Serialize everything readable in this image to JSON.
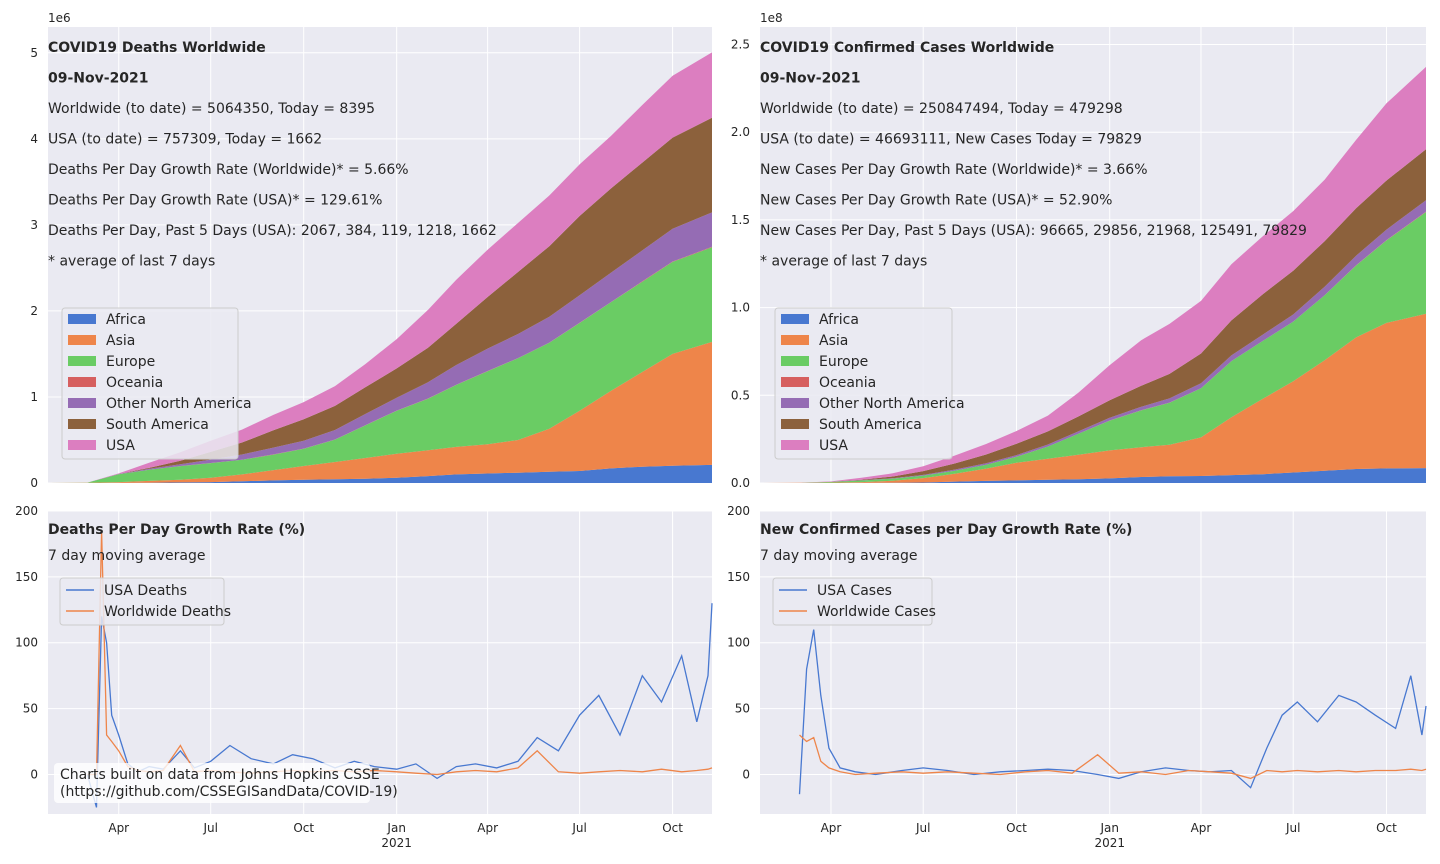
{
  "colors": {
    "Africa": "#4878d0",
    "Asia": "#ee854a",
    "Europe": "#6acc64",
    "Oceania": "#d65f5f",
    "Other North America": "#956cb4",
    "South America": "#8c613c",
    "USA": "#dc7ec0",
    "usa_line": "#4878d0",
    "world_line": "#ee854a",
    "panel_bg": "#eaeaf2",
    "grid": "#ffffff"
  },
  "x_ticks": [
    {
      "label": "Apr",
      "t": 0.0
    },
    {
      "label": "Jul",
      "t": 0.0
    },
    {
      "label": "Oct",
      "t": 0.0
    },
    {
      "label": "Jan",
      "t": 0.0
    },
    {
      "label": "Apr",
      "t": 0.0
    },
    {
      "label": "Jul",
      "t": 0.0
    },
    {
      "label": "Oct",
      "t": 0.0
    }
  ],
  "x_year_label": "2021",
  "footnote": [
    "Charts built on data from Johns Hopkins CSSE",
    "(https://github.com/CSSEGISandData/COVID-19)"
  ],
  "chart_data": [
    {
      "id": "deaths_cumulative",
      "type": "area",
      "y_multiplier_label": "1e6",
      "ylim": [
        0,
        5.3
      ],
      "y_ticks": [
        "0",
        "1",
        "2",
        "3",
        "4",
        "5"
      ],
      "y_tick_values": [
        0,
        1,
        2,
        3,
        4,
        5
      ],
      "annotations": [
        {
          "text": "COVID19 Deaths Worldwide",
          "bold": true
        },
        {
          "text": "09-Nov-2021",
          "bold": true
        },
        {
          "text": "Worldwide (to date) = 5064350, Today = 8395",
          "bold": false
        },
        {
          "text": "USA (to date) = 757309, Today = 1662",
          "bold": false
        },
        {
          "text": "Deaths Per Day Growth Rate (Worldwide)* = 5.66%",
          "bold": false
        },
        {
          "text": "Deaths Per Day Growth Rate (USA)* = 129.61%",
          "bold": false
        },
        {
          "text": "Deaths Per Day, Past 5 Days (USA): 2067, 384, 119, 1218, 1662",
          "bold": false
        },
        {
          "text": "* average of last 7 days",
          "bold": false
        }
      ],
      "legend": [
        "Africa",
        "Asia",
        "Europe",
        "Oceania",
        "Other North America",
        "South America",
        "USA"
      ],
      "x": [
        "2020-01-22",
        "2020-03-01",
        "2020-04-01",
        "2020-05-01",
        "2020-06-01",
        "2020-07-01",
        "2020-08-01",
        "2020-09-01",
        "2020-10-01",
        "2020-11-01",
        "2020-12-01",
        "2021-01-01",
        "2021-02-01",
        "2021-03-01",
        "2021-04-01",
        "2021-05-01",
        "2021-06-01",
        "2021-07-01",
        "2021-08-01",
        "2021-09-01",
        "2021-10-01",
        "2021-11-09"
      ],
      "series": [
        {
          "name": "Africa",
          "values": [
            0,
            0,
            0.001,
            0.004,
            0.007,
            0.011,
            0.02,
            0.03,
            0.038,
            0.044,
            0.05,
            0.06,
            0.08,
            0.1,
            0.11,
            0.12,
            0.13,
            0.14,
            0.17,
            0.19,
            0.2,
            0.21
          ]
        },
        {
          "name": "Asia",
          "values": [
            0,
            0.003,
            0.01,
            0.02,
            0.03,
            0.05,
            0.08,
            0.12,
            0.16,
            0.2,
            0.24,
            0.28,
            0.3,
            0.32,
            0.34,
            0.38,
            0.5,
            0.7,
            0.9,
            1.1,
            1.3,
            1.43
          ]
        },
        {
          "name": "Europe",
          "values": [
            0,
            0.002,
            0.09,
            0.13,
            0.16,
            0.17,
            0.17,
            0.18,
            0.2,
            0.26,
            0.38,
            0.5,
            0.6,
            0.72,
            0.85,
            0.95,
            1.0,
            1.02,
            1.03,
            1.05,
            1.07,
            1.1
          ]
        },
        {
          "name": "Oceania",
          "values": [
            0,
            0,
            0.001,
            0.001,
            0.001,
            0.001,
            0.001,
            0.002,
            0.002,
            0.002,
            0.002,
            0.002,
            0.002,
            0.002,
            0.002,
            0.002,
            0.002,
            0.003,
            0.003,
            0.004,
            0.004,
            0.005
          ]
        },
        {
          "name": "Other North America",
          "values": [
            0,
            0,
            0.003,
            0.01,
            0.02,
            0.04,
            0.06,
            0.08,
            0.09,
            0.11,
            0.13,
            0.15,
            0.19,
            0.23,
            0.26,
            0.28,
            0.3,
            0.32,
            0.34,
            0.36,
            0.38,
            0.4
          ]
        },
        {
          "name": "South America",
          "values": [
            0,
            0,
            0.001,
            0.01,
            0.04,
            0.09,
            0.14,
            0.2,
            0.25,
            0.28,
            0.31,
            0.34,
            0.4,
            0.48,
            0.6,
            0.72,
            0.82,
            0.92,
            0.98,
            1.02,
            1.06,
            1.1
          ]
        },
        {
          "name": "USA",
          "values": [
            0,
            0,
            0.005,
            0.06,
            0.1,
            0.13,
            0.15,
            0.18,
            0.2,
            0.23,
            0.27,
            0.34,
            0.44,
            0.51,
            0.55,
            0.57,
            0.59,
            0.6,
            0.61,
            0.67,
            0.72,
            0.76
          ]
        }
      ]
    },
    {
      "id": "cases_cumulative",
      "type": "area",
      "y_multiplier_label": "1e8",
      "ylim": [
        0,
        2.6
      ],
      "y_ticks": [
        "0.0",
        "0.5",
        "1.0",
        "1.5",
        "2.0",
        "2.5"
      ],
      "y_tick_values": [
        0,
        0.5,
        1.0,
        1.5,
        2.0,
        2.5
      ],
      "annotations": [
        {
          "text": "COVID19 Confirmed Cases Worldwide",
          "bold": true
        },
        {
          "text": "09-Nov-2021",
          "bold": true
        },
        {
          "text": "Worldwide (to date) = 250847494, Today = 479298",
          "bold": false
        },
        {
          "text": "USA (to date) = 46693111, New Cases Today = 79829",
          "bold": false
        },
        {
          "text": "New Cases Per Day Growth Rate (Worldwide)* = 3.66%",
          "bold": false
        },
        {
          "text": "New Cases Per Day Growth Rate (USA)* = 52.90%",
          "bold": false
        },
        {
          "text": "New Cases Per Day, Past 5 Days (USA): 96665, 29856, 21968, 125491, 79829",
          "bold": false
        },
        {
          "text": "* average of last 7 days",
          "bold": false
        }
      ],
      "legend": [
        "Africa",
        "Asia",
        "Europe",
        "Oceania",
        "Other North America",
        "South America",
        "USA"
      ],
      "x": [
        "2020-01-22",
        "2020-03-01",
        "2020-04-01",
        "2020-05-01",
        "2020-06-01",
        "2020-07-01",
        "2020-08-01",
        "2020-09-01",
        "2020-10-01",
        "2020-11-01",
        "2020-12-01",
        "2021-01-01",
        "2021-02-01",
        "2021-03-01",
        "2021-04-01",
        "2021-05-01",
        "2021-06-01",
        "2021-07-01",
        "2021-08-01",
        "2021-09-01",
        "2021-10-01",
        "2021-11-09"
      ],
      "series": [
        {
          "name": "Africa",
          "values": [
            0,
            0,
            0.0001,
            0.0004,
            0.001,
            0.003,
            0.008,
            0.012,
            0.015,
            0.018,
            0.021,
            0.026,
            0.034,
            0.038,
            0.04,
            0.045,
            0.05,
            0.06,
            0.07,
            0.08,
            0.083,
            0.085
          ]
        },
        {
          "name": "Asia",
          "values": [
            0,
            0.001,
            0.002,
            0.005,
            0.012,
            0.025,
            0.045,
            0.07,
            0.1,
            0.12,
            0.14,
            0.16,
            0.17,
            0.18,
            0.22,
            0.33,
            0.43,
            0.52,
            0.63,
            0.75,
            0.83,
            0.88
          ]
        },
        {
          "name": "Europe",
          "values": [
            0,
            0,
            0.004,
            0.009,
            0.012,
            0.014,
            0.017,
            0.022,
            0.035,
            0.07,
            0.12,
            0.17,
            0.21,
            0.24,
            0.28,
            0.32,
            0.33,
            0.34,
            0.37,
            0.41,
            0.47,
            0.58
          ]
        },
        {
          "name": "Oceania",
          "values": [
            0,
            0,
            0.0001,
            0.0001,
            0.0001,
            0.0001,
            0.0002,
            0.0003,
            0.0003,
            0.0003,
            0.0003,
            0.0003,
            0.0003,
            0.0003,
            0.0003,
            0.0003,
            0.0004,
            0.0005,
            0.0008,
            0.0012,
            0.0018,
            0.0025
          ]
        },
        {
          "name": "Other North America",
          "values": [
            0,
            0,
            0.0005,
            0.001,
            0.002,
            0.004,
            0.006,
            0.008,
            0.009,
            0.011,
            0.013,
            0.016,
            0.02,
            0.024,
            0.028,
            0.032,
            0.036,
            0.04,
            0.048,
            0.055,
            0.06,
            0.065
          ]
        },
        {
          "name": "South America",
          "values": [
            0,
            0,
            0.0005,
            0.003,
            0.01,
            0.022,
            0.035,
            0.05,
            0.065,
            0.075,
            0.085,
            0.1,
            0.12,
            0.14,
            0.17,
            0.2,
            0.23,
            0.25,
            0.26,
            0.27,
            0.28,
            0.29
          ]
        },
        {
          "name": "USA",
          "values": [
            0,
            0.0001,
            0.002,
            0.011,
            0.018,
            0.027,
            0.045,
            0.06,
            0.072,
            0.09,
            0.135,
            0.2,
            0.26,
            0.285,
            0.3,
            0.32,
            0.33,
            0.34,
            0.35,
            0.39,
            0.44,
            0.47
          ]
        }
      ]
    },
    {
      "id": "deaths_growth",
      "type": "line",
      "ylim": [
        -30,
        200
      ],
      "y_ticks": [
        "0",
        "50",
        "100",
        "150",
        "200"
      ],
      "y_tick_values": [
        0,
        50,
        100,
        150,
        200
      ],
      "annotations": [
        {
          "text": "Deaths Per Day Growth Rate (%)",
          "bold": true
        },
        {
          "text": "7 day moving average",
          "bold": false
        }
      ],
      "legend": [
        "USA Deaths",
        "Worldwide Deaths"
      ],
      "x": [
        "2020-03-01",
        "2020-03-10",
        "2020-03-15",
        "2020-03-20",
        "2020-03-25",
        "2020-04-01",
        "2020-04-10",
        "2020-04-20",
        "2020-05-01",
        "2020-05-15",
        "2020-06-01",
        "2020-06-15",
        "2020-07-01",
        "2020-07-20",
        "2020-08-10",
        "2020-09-01",
        "2020-09-20",
        "2020-10-10",
        "2020-11-01",
        "2020-11-20",
        "2020-12-10",
        "2021-01-01",
        "2021-01-20",
        "2021-02-10",
        "2021-03-01",
        "2021-03-20",
        "2021-04-10",
        "2021-05-01",
        "2021-05-20",
        "2021-06-10",
        "2021-07-01",
        "2021-07-20",
        "2021-08-10",
        "2021-09-01",
        "2021-09-20",
        "2021-10-10",
        "2021-10-25",
        "2021-11-05",
        "2021-11-09"
      ],
      "series": [
        {
          "name": "USA Deaths",
          "values": [
            0,
            -25,
            120,
            100,
            45,
            30,
            8,
            2,
            6,
            4,
            18,
            5,
            10,
            22,
            12,
            8,
            15,
            12,
            5,
            10,
            6,
            4,
            8,
            -3,
            6,
            8,
            5,
            10,
            28,
            18,
            45,
            60,
            30,
            75,
            55,
            90,
            40,
            75,
            130
          ]
        },
        {
          "name": "Worldwide Deaths",
          "values": [
            0,
            0,
            185,
            30,
            25,
            18,
            6,
            3,
            2,
            3,
            22,
            2,
            3,
            2,
            1,
            2,
            3,
            2,
            3,
            2,
            3,
            2,
            1,
            0,
            2,
            3,
            2,
            5,
            18,
            2,
            1,
            2,
            3,
            2,
            4,
            2,
            3,
            4,
            5
          ]
        }
      ]
    },
    {
      "id": "cases_growth",
      "type": "line",
      "ylim": [
        -30,
        200
      ],
      "y_ticks": [
        "0",
        "50",
        "100",
        "150",
        "200"
      ],
      "y_tick_values": [
        0,
        50,
        100,
        150,
        200
      ],
      "annotations": [
        {
          "text": "New Confirmed Cases per Day Growth Rate (%)",
          "bold": true
        },
        {
          "text": "7 day moving average",
          "bold": false
        }
      ],
      "legend": [
        "USA Cases",
        "Worldwide Cases"
      ],
      "x": [
        "2020-03-01",
        "2020-03-08",
        "2020-03-15",
        "2020-03-22",
        "2020-03-30",
        "2020-04-10",
        "2020-04-25",
        "2020-05-15",
        "2020-06-10",
        "2020-07-01",
        "2020-07-25",
        "2020-08-20",
        "2020-09-15",
        "2020-10-10",
        "2020-11-01",
        "2020-11-25",
        "2020-12-20",
        "2021-01-10",
        "2021-02-01",
        "2021-02-25",
        "2021-03-20",
        "2021-04-10",
        "2021-05-01",
        "2021-05-20",
        "2021-06-05",
        "2021-06-20",
        "2021-07-05",
        "2021-07-25",
        "2021-08-15",
        "2021-09-01",
        "2021-09-20",
        "2021-10-10",
        "2021-10-25",
        "2021-11-05",
        "2021-11-09"
      ],
      "series": [
        {
          "name": "USA Cases",
          "values": [
            -15,
            80,
            110,
            60,
            20,
            5,
            2,
            0,
            3,
            5,
            3,
            0,
            2,
            3,
            4,
            3,
            0,
            -3,
            2,
            5,
            3,
            2,
            3,
            -10,
            20,
            45,
            55,
            40,
            60,
            55,
            45,
            35,
            75,
            30,
            52
          ]
        },
        {
          "name": "Worldwide Cases",
          "values": [
            30,
            25,
            28,
            10,
            5,
            2,
            0,
            1,
            2,
            1,
            2,
            1,
            0,
            2,
            3,
            1,
            15,
            1,
            2,
            0,
            3,
            2,
            1,
            -3,
            3,
            2,
            3,
            2,
            3,
            2,
            3,
            3,
            4,
            3,
            4
          ]
        }
      ]
    }
  ]
}
